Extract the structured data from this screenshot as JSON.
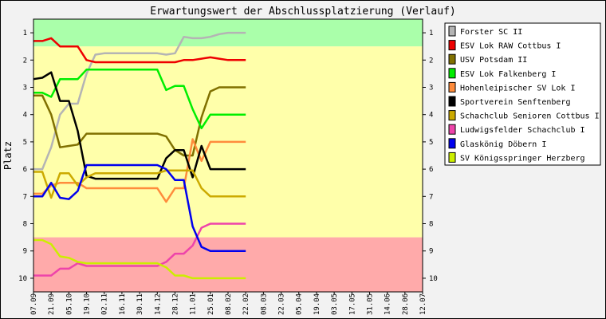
{
  "chart_data": {
    "type": "line",
    "title": "Erwartungswert der Abschlussplatzierung (Verlauf)",
    "ylabel": "Platz",
    "xlabel": "",
    "ylim": [
      10.5,
      0.5
    ],
    "y_ticks": [
      1,
      2,
      3,
      4,
      5,
      6,
      7,
      8,
      9,
      10
    ],
    "categories": [
      "07.09",
      "21.09",
      "05.10",
      "19.10",
      "02.11",
      "16.11",
      "30.11",
      "14.12",
      "28.12",
      "11.01",
      "25.01",
      "08.02",
      "22.02",
      "08.03",
      "22.03",
      "05.04",
      "19.04",
      "03.05",
      "17.05",
      "31.05",
      "14.06",
      "28.06",
      "12.07"
    ],
    "bands": [
      {
        "from": 0.5,
        "to": 1.5,
        "color": "#aaffaa"
      },
      {
        "from": 1.5,
        "to": 8.5,
        "color": "#ffffaa"
      },
      {
        "from": 8.5,
        "to": 10.5,
        "color": "#ffaaaa"
      }
    ],
    "legend_position": "right",
    "series": [
      {
        "name": "Forster SC II",
        "color": "#b4b4b4",
        "values": [
          [
            0,
            6
          ],
          [
            0.5,
            6
          ],
          [
            1,
            5.2
          ],
          [
            1.5,
            4
          ],
          [
            2,
            3.6
          ],
          [
            2.5,
            3.6
          ],
          [
            3,
            2.5
          ],
          [
            3.5,
            1.8
          ],
          [
            4,
            1.75
          ],
          [
            5,
            1.75
          ],
          [
            6,
            1.75
          ],
          [
            7,
            1.75
          ],
          [
            7.5,
            1.8
          ],
          [
            8,
            1.75
          ],
          [
            8.5,
            1.15
          ],
          [
            9,
            1.2
          ],
          [
            9.5,
            1.2
          ],
          [
            10,
            1.15
          ],
          [
            10.5,
            1.05
          ],
          [
            11,
            1
          ],
          [
            12,
            1
          ]
        ]
      },
      {
        "name": "ESV Lok RAW Cottbus I",
        "color": "#ee0000",
        "values": [
          [
            0,
            1.3
          ],
          [
            0.5,
            1.3
          ],
          [
            1,
            1.2
          ],
          [
            1.5,
            1.5
          ],
          [
            2,
            1.5
          ],
          [
            2.5,
            1.5
          ],
          [
            3,
            2
          ],
          [
            3.5,
            2.08
          ],
          [
            4,
            2.08
          ],
          [
            5,
            2.08
          ],
          [
            6,
            2.08
          ],
          [
            7,
            2.08
          ],
          [
            8,
            2.08
          ],
          [
            8.5,
            2
          ],
          [
            9,
            2
          ],
          [
            9.5,
            1.95
          ],
          [
            10,
            1.9
          ],
          [
            10.5,
            1.95
          ],
          [
            11,
            2
          ],
          [
            12,
            2
          ]
        ]
      },
      {
        "name": "USV Potsdam II",
        "color": "#807000",
        "values": [
          [
            0,
            3.3
          ],
          [
            0.5,
            3.3
          ],
          [
            1,
            4
          ],
          [
            1.5,
            5.2
          ],
          [
            2,
            5.15
          ],
          [
            2.5,
            5.1
          ],
          [
            3,
            4.7
          ],
          [
            3.5,
            4.7
          ],
          [
            4,
            4.7
          ],
          [
            5,
            4.7
          ],
          [
            6,
            4.7
          ],
          [
            7,
            4.7
          ],
          [
            7.5,
            4.8
          ],
          [
            8,
            5.3
          ],
          [
            8.5,
            5.5
          ],
          [
            9,
            5.5
          ],
          [
            9.5,
            4.1
          ],
          [
            10,
            3.15
          ],
          [
            10.5,
            3
          ],
          [
            11,
            3
          ],
          [
            12,
            3
          ]
        ]
      },
      {
        "name": "ESV Lok Falkenberg I",
        "color": "#00ee00",
        "values": [
          [
            0,
            3.2
          ],
          [
            0.5,
            3.2
          ],
          [
            1,
            3.35
          ],
          [
            1.5,
            2.7
          ],
          [
            2,
            2.7
          ],
          [
            2.5,
            2.7
          ],
          [
            3,
            2.35
          ],
          [
            3.5,
            2.35
          ],
          [
            4,
            2.35
          ],
          [
            5,
            2.35
          ],
          [
            6,
            2.35
          ],
          [
            7,
            2.35
          ],
          [
            7.5,
            3.1
          ],
          [
            8,
            2.95
          ],
          [
            8.5,
            2.95
          ],
          [
            9,
            3.8
          ],
          [
            9.5,
            4.5
          ],
          [
            10,
            4
          ],
          [
            10.5,
            4
          ],
          [
            11,
            4
          ],
          [
            12,
            4
          ]
        ]
      },
      {
        "name": "Hohenleipischer SV Lok I",
        "color": "#ff8c3c",
        "values": [
          [
            0,
            6.9
          ],
          [
            0.5,
            6.9
          ],
          [
            1,
            6.6
          ],
          [
            1.5,
            6.5
          ],
          [
            2,
            6.5
          ],
          [
            2.5,
            6.5
          ],
          [
            3,
            6.7
          ],
          [
            3.5,
            6.7
          ],
          [
            4,
            6.7
          ],
          [
            5,
            6.7
          ],
          [
            6,
            6.7
          ],
          [
            7,
            6.7
          ],
          [
            7.5,
            7.2
          ],
          [
            8,
            6.7
          ],
          [
            8.5,
            6.7
          ],
          [
            9,
            4.9
          ],
          [
            9.5,
            5.7
          ],
          [
            10,
            5
          ],
          [
            10.5,
            5
          ],
          [
            11,
            5
          ],
          [
            12,
            5
          ]
        ]
      },
      {
        "name": "Sportverein Senftenberg",
        "color": "#000000",
        "values": [
          [
            0,
            2.7
          ],
          [
            0.5,
            2.65
          ],
          [
            1,
            2.45
          ],
          [
            1.5,
            3.5
          ],
          [
            2,
            3.5
          ],
          [
            2.5,
            4.6
          ],
          [
            3,
            6.25
          ],
          [
            3.5,
            6.35
          ],
          [
            4,
            6.35
          ],
          [
            5,
            6.35
          ],
          [
            6,
            6.35
          ],
          [
            7,
            6.35
          ],
          [
            7.5,
            5.6
          ],
          [
            8,
            5.3
          ],
          [
            8.5,
            5.3
          ],
          [
            9,
            6.3
          ],
          [
            9.5,
            5.15
          ],
          [
            10,
            6
          ],
          [
            10.5,
            6
          ],
          [
            11,
            6
          ],
          [
            12,
            6
          ]
        ]
      },
      {
        "name": "Schachclub Senioren Cottbus I",
        "color": "#ccaa00",
        "values": [
          [
            0,
            6.1
          ],
          [
            0.5,
            6.1
          ],
          [
            1,
            7.05
          ],
          [
            1.5,
            6.15
          ],
          [
            2,
            6.15
          ],
          [
            2.5,
            6.6
          ],
          [
            3,
            6.3
          ],
          [
            3.5,
            6.15
          ],
          [
            4,
            6.15
          ],
          [
            5,
            6.15
          ],
          [
            6,
            6.15
          ],
          [
            7,
            6.15
          ],
          [
            7.5,
            6.05
          ],
          [
            8,
            6.05
          ],
          [
            8.5,
            6.05
          ],
          [
            9,
            6.05
          ],
          [
            9.5,
            6.7
          ],
          [
            10,
            7
          ],
          [
            10.5,
            7
          ],
          [
            11,
            7
          ],
          [
            12,
            7
          ]
        ]
      },
      {
        "name": "Ludwigsfelder Schachclub I",
        "color": "#ee44aa",
        "values": [
          [
            0,
            9.9
          ],
          [
            0.5,
            9.9
          ],
          [
            1,
            9.9
          ],
          [
            1.5,
            9.65
          ],
          [
            2,
            9.65
          ],
          [
            2.5,
            9.45
          ],
          [
            3,
            9.55
          ],
          [
            3.5,
            9.55
          ],
          [
            4,
            9.55
          ],
          [
            5,
            9.55
          ],
          [
            6,
            9.55
          ],
          [
            7,
            9.55
          ],
          [
            7.5,
            9.4
          ],
          [
            8,
            9.1
          ],
          [
            8.5,
            9.1
          ],
          [
            9,
            8.8
          ],
          [
            9.5,
            8.15
          ],
          [
            10,
            8
          ],
          [
            10.5,
            8
          ],
          [
            11,
            8
          ],
          [
            12,
            8
          ]
        ]
      },
      {
        "name": "Glaskönig Döbern I",
        "color": "#0000ee",
        "values": [
          [
            0,
            7
          ],
          [
            0.5,
            7
          ],
          [
            1,
            6.5
          ],
          [
            1.5,
            7.05
          ],
          [
            2,
            7.1
          ],
          [
            2.5,
            6.8
          ],
          [
            3,
            5.85
          ],
          [
            3.5,
            5.85
          ],
          [
            4,
            5.85
          ],
          [
            5,
            5.85
          ],
          [
            6,
            5.85
          ],
          [
            7,
            5.85
          ],
          [
            7.5,
            6
          ],
          [
            8,
            6.4
          ],
          [
            8.5,
            6.4
          ],
          [
            9,
            8.1
          ],
          [
            9.5,
            8.85
          ],
          [
            10,
            9
          ],
          [
            10.5,
            9
          ],
          [
            11,
            9
          ],
          [
            12,
            9
          ]
        ]
      },
      {
        "name": "SV Königsspringer Herzberg",
        "color": "#ccee00",
        "values": [
          [
            0,
            8.6
          ],
          [
            0.5,
            8.6
          ],
          [
            1,
            8.75
          ],
          [
            1.5,
            9.2
          ],
          [
            2,
            9.25
          ],
          [
            2.5,
            9.4
          ],
          [
            3,
            9.45
          ],
          [
            3.5,
            9.45
          ],
          [
            4,
            9.45
          ],
          [
            5,
            9.45
          ],
          [
            6,
            9.45
          ],
          [
            7,
            9.45
          ],
          [
            7.5,
            9.6
          ],
          [
            8,
            9.9
          ],
          [
            8.5,
            9.9
          ],
          [
            9,
            10
          ],
          [
            9.5,
            10
          ],
          [
            10,
            10
          ],
          [
            10.5,
            10
          ],
          [
            11,
            10
          ],
          [
            12,
            10
          ]
        ]
      }
    ]
  }
}
